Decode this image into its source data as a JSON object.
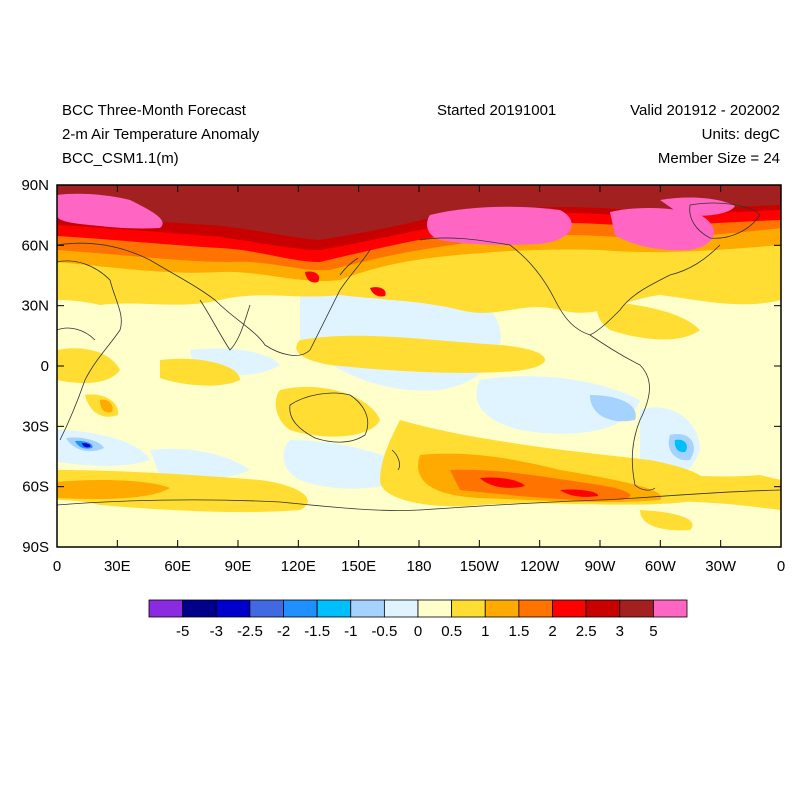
{
  "header": {
    "title_line1": "BCC Three-Month Forecast",
    "title_line2": "2-m Air Temperature Anomaly",
    "title_line3": "BCC_CSM1.1(m)",
    "started": "Started 20191001",
    "valid": "Valid 201912 - 202002",
    "units": "Units: degC",
    "member_size": "Member Size = 24"
  },
  "axes": {
    "y_ticks": [
      "90N",
      "60N",
      "30N",
      "0",
      "30S",
      "60S",
      "90S"
    ],
    "x_ticks": [
      "0",
      "30E",
      "60E",
      "90E",
      "120E",
      "150E",
      "180",
      "150W",
      "120W",
      "90W",
      "60W",
      "30W",
      "0"
    ]
  },
  "colorbar": {
    "labels": [
      "-5",
      "-3",
      "-2.5",
      "-2",
      "-1.5",
      "-1",
      "-0.5",
      "0",
      "0.5",
      "1",
      "1.5",
      "2",
      "2.5",
      "3",
      "5"
    ],
    "colors": [
      "#8a2be2",
      "#00008b",
      "#0000cd",
      "#4169e1",
      "#1e90ff",
      "#00bfff",
      "#a6d2ff",
      "#e0f4ff",
      "#ffffcc",
      "#ffdd33",
      "#ffaa00",
      "#ff7300",
      "#ff0000",
      "#c80000",
      "#a32020",
      "#ff66c4"
    ]
  }
}
